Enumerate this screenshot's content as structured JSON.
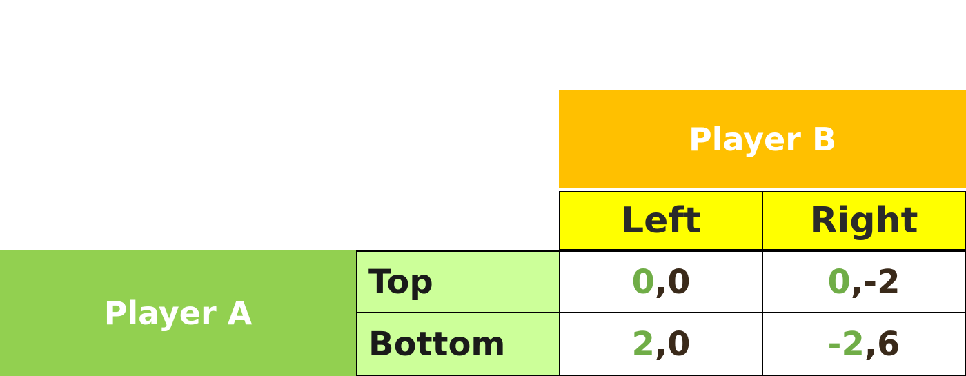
{
  "colors": {
    "player_b_header": "#ffc000",
    "column_strategy_fill": "#ffff00",
    "player_a_header": "#92d050",
    "row_strategy_fill": "#ccff99",
    "player_a_payoff_text": "#70ad47",
    "player_b_payoff_text": "#3a2a1a"
  },
  "players": {
    "column_player": "Player B",
    "row_player": "Player A"
  },
  "columns": [
    "Left",
    "Right"
  ],
  "rows": [
    "Top",
    "Bottom"
  ],
  "payoffs": [
    [
      {
        "a": "0",
        "sep": ",",
        "b": "0"
      },
      {
        "a": "0",
        "sep": ",",
        "b": "-2"
      }
    ],
    [
      {
        "a": "2",
        "sep": ",",
        "b": "0"
      },
      {
        "a": "-2",
        "sep": ",",
        "b": "6"
      }
    ]
  ]
}
